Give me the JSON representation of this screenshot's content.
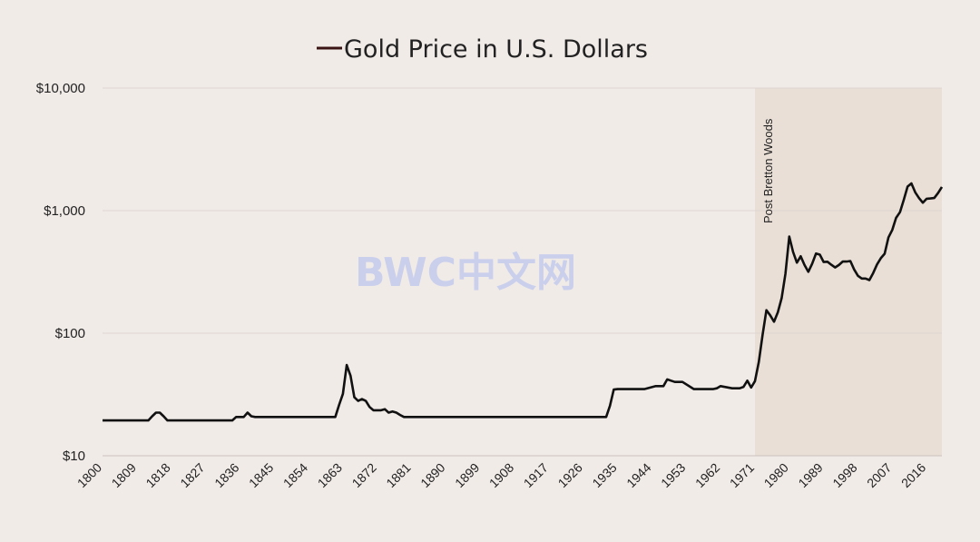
{
  "chart_data": {
    "type": "line",
    "title": "Gold Price in U.S. Dollars",
    "y_scale": "log",
    "ylim": [
      10,
      10000
    ],
    "xlim": [
      1800,
      2020
    ],
    "y_ticks": [
      10,
      100,
      1000,
      10000
    ],
    "y_tick_labels": [
      "$10",
      "$100",
      "$1,000",
      "$10,000"
    ],
    "x_ticks": [
      1800,
      1809,
      1818,
      1827,
      1836,
      1845,
      1854,
      1863,
      1872,
      1881,
      1890,
      1899,
      1908,
      1917,
      1926,
      1935,
      1944,
      1953,
      1962,
      1971,
      1980,
      1989,
      1998,
      2007,
      2016
    ],
    "grid": "horizontal",
    "legend_placement": "top",
    "colors": {
      "line": "#111111",
      "legend": "#3a1414",
      "shade": "#e9dfd6",
      "background": "#f1ebe8"
    },
    "shaded_region": {
      "from": 1971,
      "to": 2020,
      "label": "Post Bretton Woods"
    },
    "watermark": "BWC中文网",
    "x": [
      1800,
      1812,
      1813,
      1814,
      1815,
      1816,
      1817,
      1834,
      1835,
      1837,
      1838,
      1839,
      1840,
      1861,
      1862,
      1863,
      1864,
      1865,
      1866,
      1867,
      1868,
      1869,
      1870,
      1871,
      1872,
      1873,
      1874,
      1875,
      1876,
      1877,
      1878,
      1879,
      1932,
      1933,
      1934,
      1935,
      1942,
      1945,
      1947,
      1948,
      1949,
      1950,
      1952,
      1955,
      1960,
      1961,
      1962,
      1965,
      1967,
      1968,
      1969,
      1970,
      1971,
      1972,
      1973,
      1974,
      1975,
      1976,
      1977,
      1978,
      1979,
      1980,
      1981,
      1982,
      1983,
      1984,
      1985,
      1986,
      1987,
      1988,
      1989,
      1990,
      1991,
      1992,
      1993,
      1994,
      1995,
      1996,
      1997,
      1998,
      1999,
      2000,
      2001,
      2002,
      2003,
      2004,
      2005,
      2006,
      2007,
      2008,
      2009,
      2010,
      2011,
      2012,
      2013,
      2014,
      2015,
      2016,
      2017,
      2018,
      2019,
      2020
    ],
    "y": [
      19.4,
      19.4,
      21,
      22.5,
      22.5,
      21,
      19.4,
      19.4,
      20.7,
      20.7,
      22.5,
      21,
      20.7,
      20.7,
      26,
      32,
      55,
      45,
      30,
      28,
      29,
      28,
      25,
      23.5,
      23.5,
      23.5,
      24,
      22.5,
      23,
      22.5,
      21.5,
      20.7,
      20.7,
      25.6,
      34.7,
      35,
      35,
      37,
      37,
      42,
      41,
      40,
      40,
      35,
      35,
      35.5,
      37,
      35.5,
      35.5,
      36.5,
      41,
      36,
      40.6,
      58,
      97,
      154,
      140,
      124,
      148,
      193,
      306,
      615,
      460,
      376,
      424,
      360,
      317,
      368,
      447,
      437,
      381,
      383,
      362,
      344,
      360,
      384,
      384,
      388,
      331,
      294,
      279,
      279,
      271,
      310,
      364,
      409,
      445,
      604,
      695,
      872,
      972,
      1225,
      1572,
      1669,
      1411,
      1266,
      1160,
      1250,
      1257,
      1268,
      1393,
      1560
    ]
  }
}
